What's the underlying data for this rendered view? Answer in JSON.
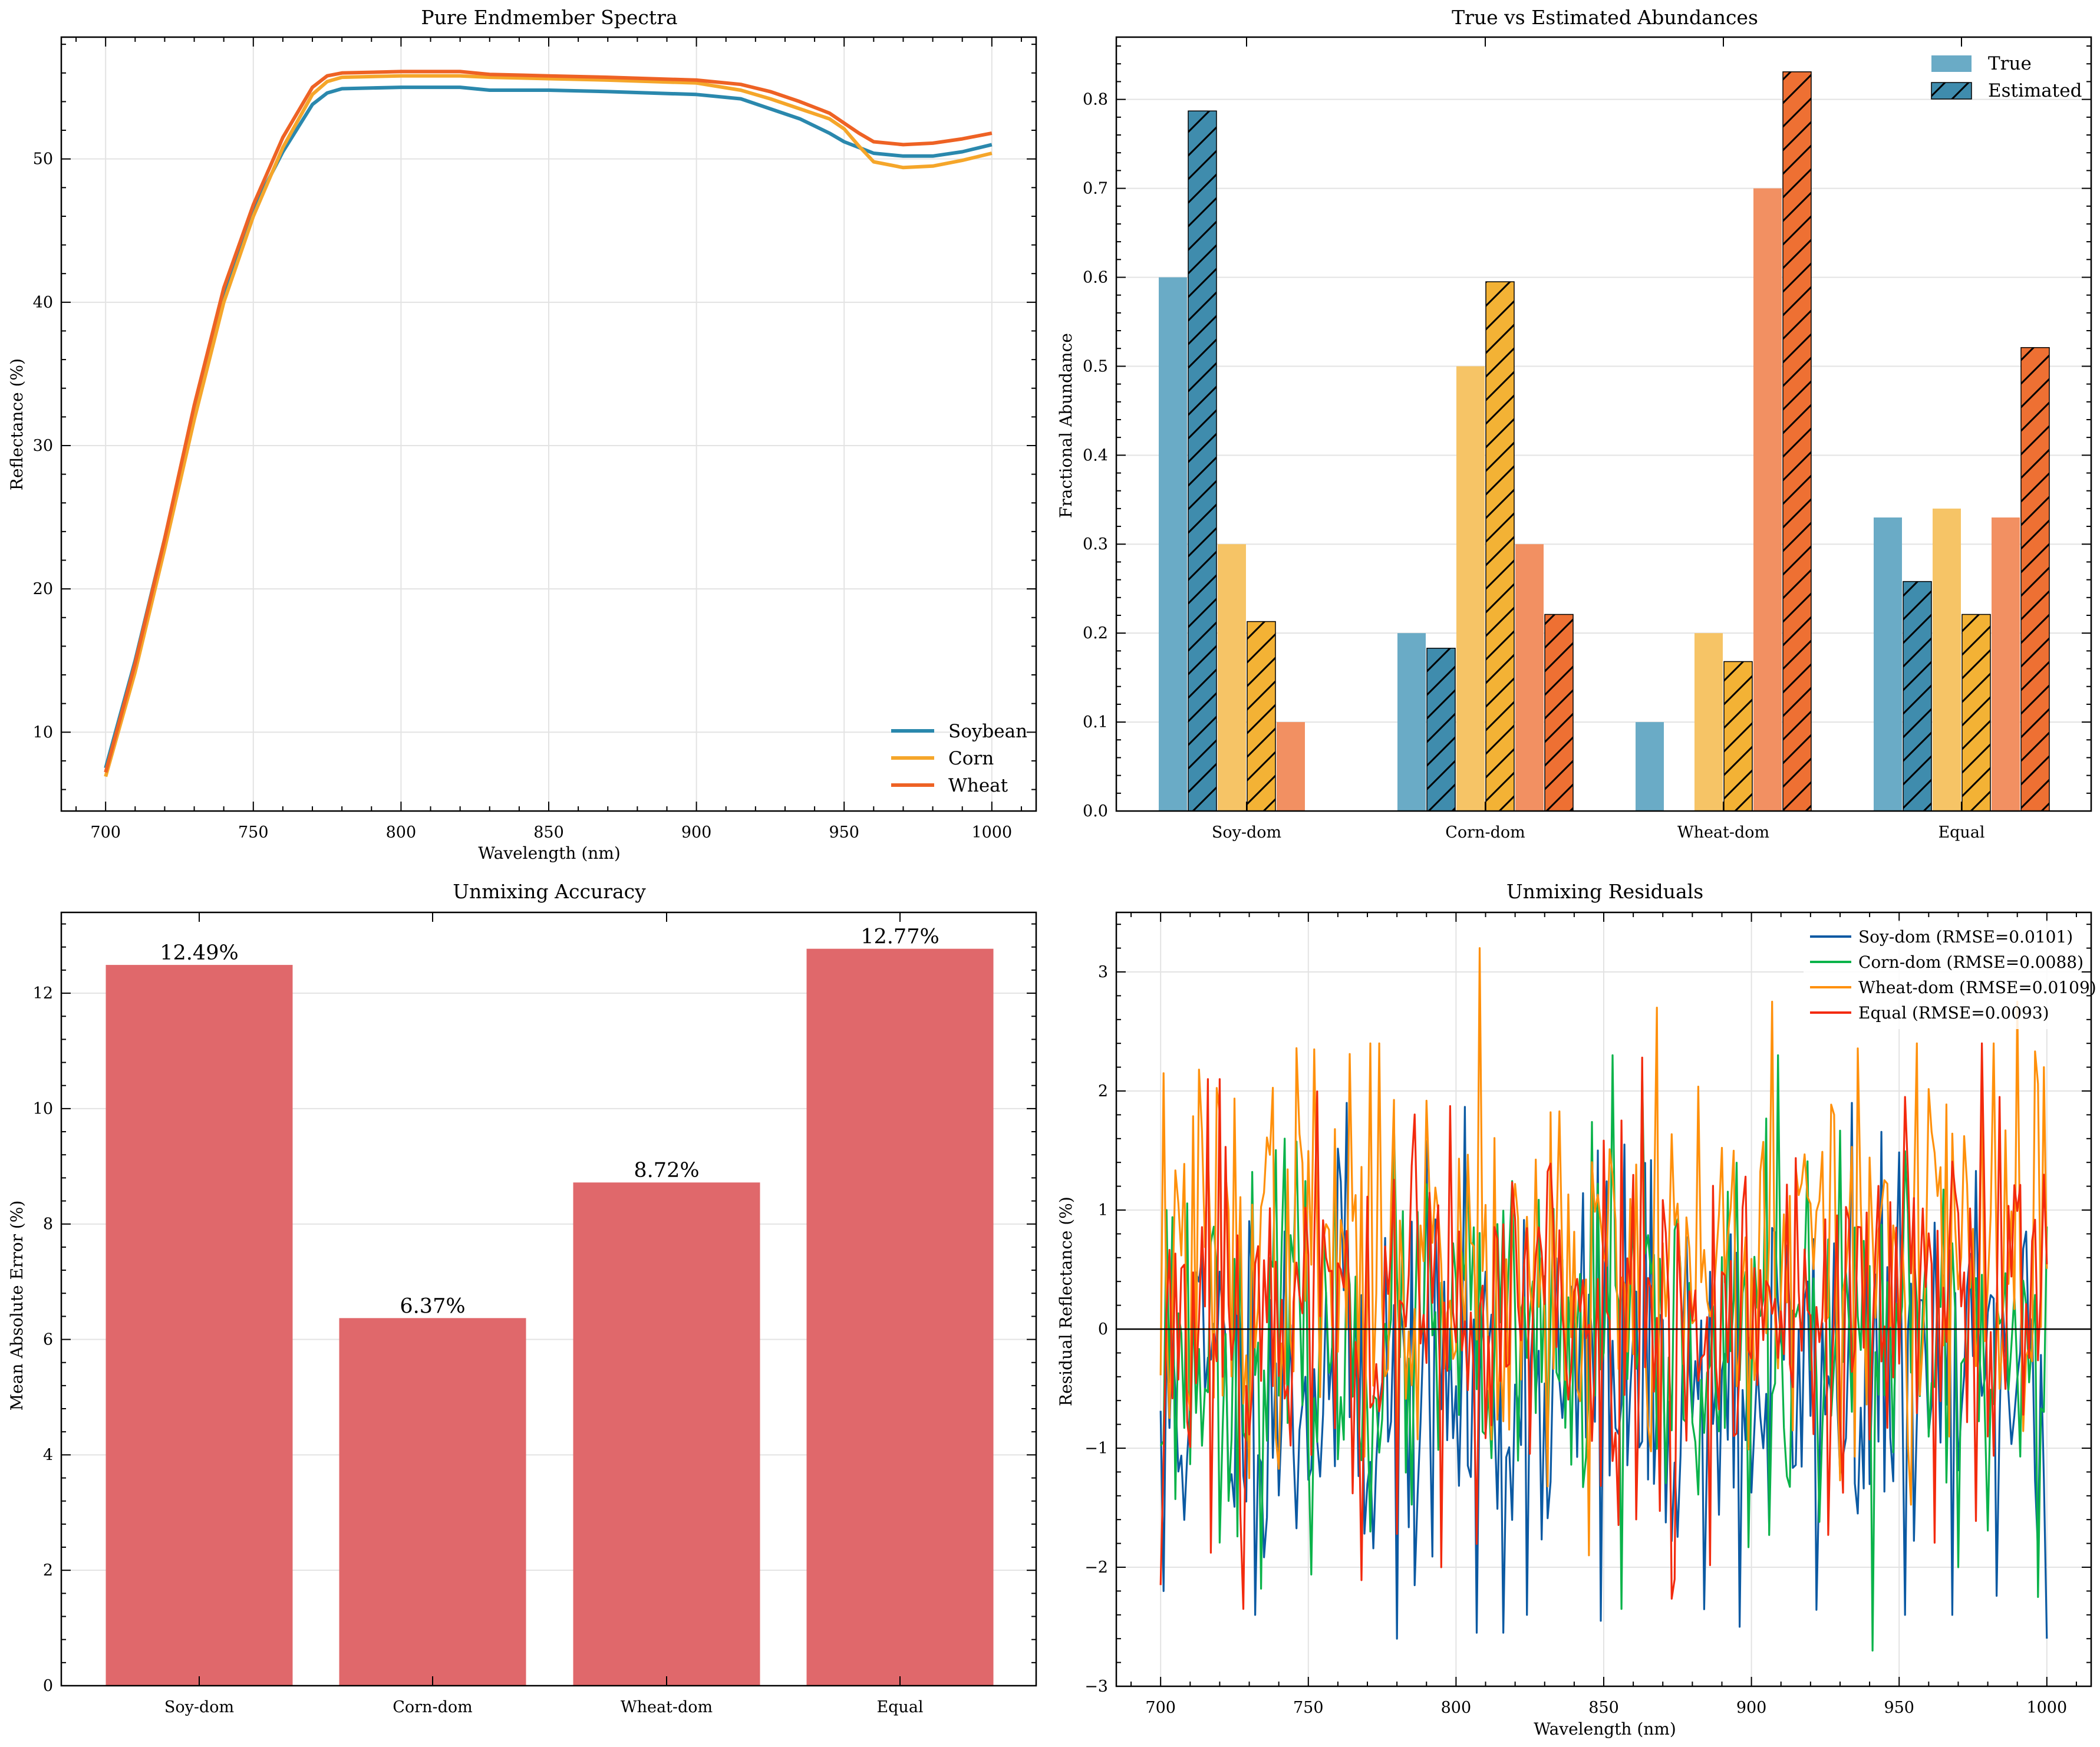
{
  "colors": {
    "soy": "#2a88ad",
    "corn": "#f5a62a",
    "wheat": "#ee6224",
    "soy_true": "#6aabc6",
    "corn_true": "#f6c466",
    "wheat_true": "#f29062",
    "soy_est": "#3f8cad",
    "corn_est": "#f3b235",
    "wheat_est": "#ee7033",
    "mae_bar": "#e0686b",
    "res_soy": "#0b5aa3",
    "res_corn": "#0ab34a",
    "res_wheat": "#ff900b",
    "res_equal": "#f32a0d"
  },
  "chart_data": [
    {
      "type": "line",
      "title": "Pure Endmember Spectra",
      "xlabel": "Wavelength (nm)",
      "ylabel": "Reflectance (%)",
      "xlim": [
        685,
        1015
      ],
      "ylim": [
        4.5,
        58.5
      ],
      "xticks": [
        700,
        750,
        800,
        850,
        900,
        950,
        1000
      ],
      "yticks": [
        10,
        20,
        30,
        40,
        50
      ],
      "grid": true,
      "legend": "lower-right",
      "series": [
        {
          "name": "Soybean",
          "color_key": "soy",
          "x": [
            700,
            710,
            720,
            730,
            740,
            750,
            760,
            770,
            775,
            780,
            800,
            820,
            830,
            850,
            870,
            900,
            915,
            925,
            935,
            945,
            950,
            955,
            960,
            970,
            980,
            990,
            1000
          ],
          "y": [
            7.5,
            15.0,
            23.5,
            32.5,
            40.5,
            46.5,
            50.5,
            53.8,
            54.6,
            54.9,
            55.0,
            55.0,
            54.8,
            54.8,
            54.7,
            54.5,
            54.2,
            53.5,
            52.8,
            51.8,
            51.2,
            50.8,
            50.4,
            50.2,
            50.2,
            50.5,
            51.0
          ]
        },
        {
          "name": "Corn",
          "color_key": "corn",
          "x": [
            700,
            710,
            720,
            730,
            740,
            750,
            760,
            770,
            775,
            780,
            800,
            820,
            830,
            850,
            870,
            900,
            915,
            925,
            935,
            945,
            950,
            955,
            960,
            970,
            980,
            990,
            1000
          ],
          "y": [
            6.9,
            14.2,
            22.8,
            31.8,
            40.0,
            46.0,
            50.8,
            54.5,
            55.4,
            55.7,
            55.8,
            55.8,
            55.7,
            55.6,
            55.5,
            55.3,
            54.8,
            54.2,
            53.5,
            52.8,
            52.1,
            50.9,
            49.8,
            49.4,
            49.5,
            49.9,
            50.4
          ]
        },
        {
          "name": "Wheat",
          "color_key": "wheat",
          "x": [
            700,
            710,
            720,
            730,
            740,
            750,
            760,
            770,
            775,
            780,
            800,
            820,
            830,
            850,
            870,
            900,
            915,
            925,
            935,
            945,
            950,
            955,
            960,
            970,
            980,
            990,
            1000
          ],
          "y": [
            7.2,
            14.8,
            23.5,
            32.8,
            41.0,
            46.8,
            51.5,
            55.0,
            55.8,
            56.0,
            56.1,
            56.1,
            55.9,
            55.8,
            55.7,
            55.5,
            55.2,
            54.7,
            54.0,
            53.2,
            52.5,
            51.8,
            51.2,
            51.0,
            51.1,
            51.4,
            51.8
          ]
        }
      ]
    },
    {
      "type": "bar",
      "title": "True vs Estimated Abundances",
      "xlabel": "",
      "ylabel": "Fractional Abundance",
      "ylim": [
        0,
        0.87
      ],
      "yticks": [
        0.0,
        0.1,
        0.2,
        0.3,
        0.4,
        0.5,
        0.6,
        0.7,
        0.8
      ],
      "grid": true,
      "legend": "top-right",
      "legend_entries": [
        "True",
        "Estimated"
      ],
      "categories": [
        "Soy-dom",
        "Corn-dom",
        "Wheat-dom",
        "Equal"
      ],
      "series": [
        {
          "name": "True",
          "endmember": "soy",
          "values": [
            0.6,
            0.2,
            0.1,
            0.33
          ]
        },
        {
          "name": "Estimated",
          "endmember": "soy",
          "values": [
            0.787,
            0.183,
            0.0,
            0.258
          ]
        },
        {
          "name": "True",
          "endmember": "corn",
          "values": [
            0.3,
            0.5,
            0.2,
            0.34
          ]
        },
        {
          "name": "Estimated",
          "endmember": "corn",
          "values": [
            0.213,
            0.595,
            0.168,
            0.221
          ]
        },
        {
          "name": "True",
          "endmember": "wheat",
          "values": [
            0.1,
            0.3,
            0.7,
            0.33
          ]
        },
        {
          "name": "Estimated",
          "endmember": "wheat",
          "values": [
            0.0,
            0.221,
            0.831,
            0.521
          ]
        }
      ]
    },
    {
      "type": "bar",
      "title": "Unmixing Accuracy",
      "xlabel": "",
      "ylabel": "Mean Absolute Error (%)",
      "ylim": [
        0,
        13.4
      ],
      "yticks": [
        0,
        2,
        4,
        6,
        8,
        10,
        12
      ],
      "grid": true,
      "categories": [
        "Soy-dom",
        "Corn-dom",
        "Wheat-dom",
        "Equal"
      ],
      "values": [
        12.49,
        6.37,
        8.72,
        12.77
      ],
      "data_labels": [
        "12.49%",
        "6.37%",
        "8.72%",
        "12.77%"
      ]
    },
    {
      "type": "line",
      "title": "Unmixing Residuals",
      "xlabel": "Wavelength (nm)",
      "ylabel": "Residual Reflectance (%)",
      "xlim": [
        685,
        1015
      ],
      "ylim": [
        -3,
        3.5
      ],
      "xticks": [
        700,
        750,
        800,
        850,
        900,
        950,
        1000
      ],
      "yticks": [
        -3,
        -2,
        -1,
        0,
        1,
        2,
        3
      ],
      "ytick_labels": [
        "−3",
        "−2",
        "−1",
        "0",
        "1",
        "2",
        "3"
      ],
      "grid": true,
      "legend": "top-right",
      "x_range": [
        700,
        1000
      ],
      "n_points": 301,
      "zero_line": true,
      "series": [
        {
          "name": "Soy-dom (RMSE=0.0101)",
          "color_key": "res_soy",
          "bias": -0.45,
          "spread": 0.85,
          "seed": 11,
          "peaks": [
            [
              701,
              -2.2
            ],
            [
              780,
              -2.6
            ],
            [
              807,
              -2.55
            ],
            [
              816,
              -2.55
            ],
            [
              849,
              -2.45
            ],
            [
              896,
              -2.5
            ],
            [
              1000,
              -2.6
            ],
            [
              763,
              1.9
            ],
            [
              934,
              1.9
            ],
            [
              848,
              1.5
            ],
            [
              857,
              1.55
            ]
          ]
        },
        {
          "name": "Corn-dom (RMSE=0.0088)",
          "color_key": "res_corn",
          "bias": -0.15,
          "spread": 0.75,
          "seed": 23,
          "peaks": [
            [
              702,
              1.0
            ],
            [
              742,
              1.6
            ],
            [
              856,
              -2.35
            ],
            [
              941,
              -2.7
            ],
            [
              997,
              -2.25
            ],
            [
              853,
              2.3
            ],
            [
              909,
              2.3
            ],
            [
              970,
              -2.0
            ]
          ]
        },
        {
          "name": "Wheat-dom (RMSE=0.0109)",
          "color_key": "res_wheat",
          "bias": 0.55,
          "spread": 0.85,
          "seed": 37,
          "peaks": [
            [
              808,
              3.2
            ],
            [
              868,
              2.7
            ],
            [
              907,
              2.75
            ],
            [
              990,
              2.75
            ],
            [
              999,
              2.2
            ],
            [
              752,
              2.35
            ],
            [
              845,
              -1.9
            ]
          ]
        },
        {
          "name": "Equal (RMSE=0.0093)",
          "color_key": "res_equal",
          "bias": 0.15,
          "spread": 0.85,
          "seed": 53,
          "peaks": [
            [
              700,
              -2.15
            ],
            [
              728,
              -2.35
            ],
            [
              716,
              2.1
            ],
            [
              720,
              2.1
            ],
            [
              795,
              -2.0
            ],
            [
              874,
              -2.1
            ],
            [
              952,
              1.95
            ],
            [
              984,
              1.95
            ]
          ]
        }
      ]
    }
  ]
}
